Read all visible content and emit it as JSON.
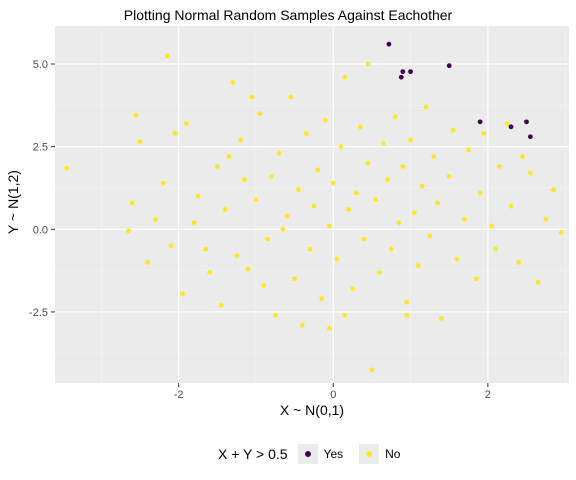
{
  "chart_data": {
    "type": "scatter",
    "title": "Plotting Normal Random Samples Against Eachother",
    "xlabel": "X ~ N(0,1)",
    "ylabel": "Y ~ N(1,2)",
    "xlim": [
      -3.6,
      3.05
    ],
    "ylim": [
      -4.65,
      6.15
    ],
    "x_ticks": [
      -2,
      0,
      2
    ],
    "x_tick_labels": [
      "-2",
      "0",
      "2"
    ],
    "y_ticks": [
      -2.5,
      0.0,
      2.5,
      5.0
    ],
    "y_tick_labels": [
      "-2.5",
      "0.0",
      "2.5",
      "5.0"
    ],
    "grid": true,
    "legend": {
      "title": "X + Y > 0.5",
      "placement": "bottom",
      "entries": [
        {
          "label": "Yes",
          "color": "#440154"
        },
        {
          "label": "No",
          "color": "#fde725"
        }
      ]
    },
    "series": [
      {
        "name": "Yes",
        "color": "#440154",
        "points": [
          [
            0.72,
            5.6
          ],
          [
            0.9,
            4.77
          ],
          [
            1.0,
            4.77
          ],
          [
            0.88,
            4.6
          ],
          [
            1.5,
            4.95
          ],
          [
            1.9,
            3.25
          ],
          [
            2.3,
            3.1
          ],
          [
            2.5,
            3.25
          ],
          [
            2.55,
            2.8
          ]
        ]
      },
      {
        "name": "No",
        "color": "#fde725",
        "points": [
          [
            -3.45,
            1.85
          ],
          [
            -2.65,
            -0.05
          ],
          [
            -2.6,
            0.8
          ],
          [
            -2.5,
            2.65
          ],
          [
            -2.55,
            3.45
          ],
          [
            -2.4,
            -1.0
          ],
          [
            -2.15,
            5.25
          ],
          [
            -2.2,
            1.4
          ],
          [
            -2.05,
            2.9
          ],
          [
            -1.95,
            -1.95
          ],
          [
            -1.8,
            0.2
          ],
          [
            -1.65,
            -0.6
          ],
          [
            -1.5,
            1.9
          ],
          [
            -1.45,
            -2.3
          ],
          [
            -1.3,
            4.45
          ],
          [
            -1.2,
            2.7
          ],
          [
            -1.1,
            -1.2
          ],
          [
            -1.0,
            0.9
          ],
          [
            -0.95,
            3.5
          ],
          [
            -0.85,
            -0.3
          ],
          [
            -0.8,
            1.6
          ],
          [
            -0.75,
            -2.6
          ],
          [
            -0.7,
            2.3
          ],
          [
            -0.6,
            0.4
          ],
          [
            -0.55,
            4.0
          ],
          [
            -0.5,
            -1.5
          ],
          [
            -0.45,
            1.2
          ],
          [
            -0.35,
            2.9
          ],
          [
            -0.3,
            -0.6
          ],
          [
            -0.25,
            0.7
          ],
          [
            -0.2,
            1.8
          ],
          [
            -0.15,
            -2.1
          ],
          [
            -0.1,
            3.3
          ],
          [
            -0.05,
            0.1
          ],
          [
            0.0,
            1.4
          ],
          [
            0.05,
            -0.9
          ],
          [
            0.1,
            2.5
          ],
          [
            0.15,
            4.6
          ],
          [
            0.2,
            0.6
          ],
          [
            0.25,
            -1.8
          ],
          [
            0.3,
            1.1
          ],
          [
            0.35,
            3.1
          ],
          [
            0.4,
            -0.3
          ],
          [
            0.45,
            2.0
          ],
          [
            0.5,
            -4.25
          ],
          [
            0.55,
            0.9
          ],
          [
            0.6,
            -1.3
          ],
          [
            0.65,
            2.6
          ],
          [
            0.7,
            1.5
          ],
          [
            0.75,
            -0.6
          ],
          [
            0.8,
            3.4
          ],
          [
            0.85,
            0.2
          ],
          [
            0.9,
            1.9
          ],
          [
            0.95,
            -2.2
          ],
          [
            1.0,
            2.7
          ],
          [
            1.05,
            0.5
          ],
          [
            1.1,
            -1.1
          ],
          [
            1.15,
            1.3
          ],
          [
            1.2,
            3.7
          ],
          [
            1.25,
            -0.2
          ],
          [
            1.3,
            2.2
          ],
          [
            1.35,
            0.8
          ],
          [
            1.4,
            -2.7
          ],
          [
            1.5,
            1.6
          ],
          [
            1.55,
            3.0
          ],
          [
            1.6,
            -0.9
          ],
          [
            1.7,
            0.3
          ],
          [
            1.75,
            2.4
          ],
          [
            1.85,
            -1.5
          ],
          [
            1.9,
            1.1
          ],
          [
            1.95,
            2.9
          ],
          [
            2.05,
            0.1
          ],
          [
            2.1,
            -0.6
          ],
          [
            2.15,
            1.9
          ],
          [
            2.25,
            3.2
          ],
          [
            2.3,
            0.7
          ],
          [
            2.4,
            -1.0
          ],
          [
            2.45,
            2.2
          ],
          [
            2.55,
            1.7
          ],
          [
            2.65,
            -1.6
          ],
          [
            2.75,
            0.3
          ],
          [
            2.85,
            1.2
          ],
          [
            2.95,
            -0.1
          ],
          [
            -2.3,
            0.3
          ],
          [
            -2.1,
            -0.5
          ],
          [
            -1.9,
            3.2
          ],
          [
            -1.75,
            1.0
          ],
          [
            -1.6,
            -1.3
          ],
          [
            -1.4,
            0.6
          ],
          [
            -1.35,
            2.2
          ],
          [
            -1.25,
            -0.8
          ],
          [
            -1.15,
            1.5
          ],
          [
            -1.05,
            4.0
          ],
          [
            -0.9,
            -1.7
          ],
          [
            -0.65,
            0.0
          ],
          [
            -0.4,
            -2.9
          ],
          [
            -0.05,
            -3.0
          ],
          [
            0.15,
            -2.6
          ],
          [
            0.45,
            5.0
          ],
          [
            0.95,
            -2.6
          ]
        ]
      }
    ]
  }
}
